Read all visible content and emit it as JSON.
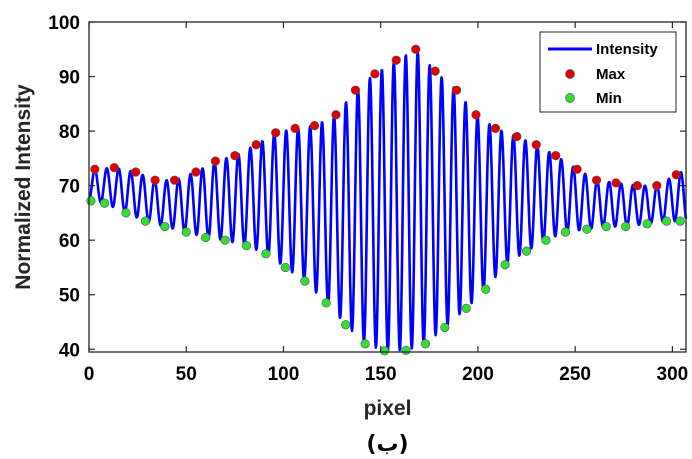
{
  "chart_data": {
    "type": "line",
    "xlabel": "pixel",
    "ylabel": "Normalized Intensity",
    "caption": "(ب)",
    "xlim": [
      0,
      307
    ],
    "ylim": [
      39.5,
      100
    ],
    "xticks": [
      0,
      50,
      100,
      150,
      200,
      250,
      300
    ],
    "yticks": [
      40,
      50,
      60,
      70,
      80,
      90,
      100
    ],
    "box": true,
    "grid": false,
    "legend_position": "top-right",
    "series": [
      {
        "name": "Intensity",
        "style": "line",
        "color": "#0000ff",
        "period": 6.15,
        "x_end": 307
      },
      {
        "name": "Max",
        "style": "markers",
        "color": "#e00000",
        "x": [
          3,
          13,
          24,
          34,
          44,
          55,
          65,
          75,
          86,
          96,
          106,
          116,
          127,
          137,
          147,
          158,
          168,
          178,
          189,
          199,
          209,
          220,
          230,
          240,
          251,
          261,
          271,
          282,
          292,
          302
        ],
        "y": [
          73,
          73.3,
          72.5,
          71.0,
          71.0,
          72.5,
          74.5,
          75.5,
          77.5,
          79.7,
          80.5,
          81.0,
          83.0,
          87.5,
          90.5,
          93.0,
          95.0,
          91.0,
          87.5,
          83.0,
          80.5,
          79.0,
          77.5,
          75.5,
          73.0,
          71.0,
          70.5,
          70.0,
          70.0,
          72.0
        ]
      },
      {
        "name": "Min",
        "style": "markers",
        "color": "#33dd33",
        "x": [
          1,
          8,
          19,
          29,
          39,
          50,
          60,
          70,
          81,
          91,
          101,
          111,
          122,
          132,
          142,
          152,
          163,
          173,
          183,
          194,
          204,
          214,
          225,
          235,
          245,
          256,
          266,
          276,
          287,
          297,
          304
        ],
        "y": [
          67.2,
          66.8,
          65.0,
          63.5,
          62.5,
          61.5,
          60.5,
          60.0,
          59.0,
          57.5,
          55.0,
          52.5,
          48.5,
          44.5,
          41.0,
          39.7,
          39.8,
          41.0,
          44.0,
          47.5,
          51.0,
          55.5,
          58.0,
          60.0,
          61.5,
          62.0,
          62.5,
          62.5,
          63.0,
          63.5,
          63.5
        ]
      }
    ]
  }
}
